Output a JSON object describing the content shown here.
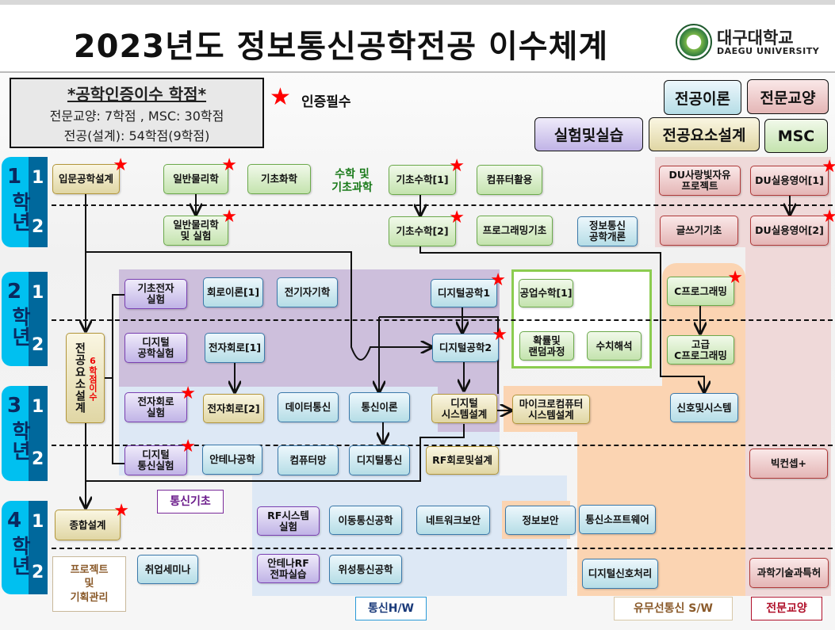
{
  "title": "2023년도 정보통신공학전공 이수체계",
  "logo": {
    "ko": "대구대학교",
    "en": "DAEGU UNIVERSITY"
  },
  "credits": {
    "heading": "*공학인증이수 학점*",
    "line1": "전문교양: 7학점 , MSC: 30학점",
    "line2": "전공(설계): 54학점(9학점)"
  },
  "required_legend": {
    "icon": "red-star",
    "label": "인증필수"
  },
  "legend": {
    "theory": "전공이론",
    "general": "전문교양",
    "lab": "실험및실습",
    "design": "전공요소설계",
    "msc": "MSC"
  },
  "colors": {
    "msc": "#c4e3ae",
    "theory": "#b5dde6",
    "lab": "#c0b3e6",
    "design": "#e0d6a4",
    "general": "#e4b5b5",
    "star": "#ff0000",
    "year_block": "#00c0f0",
    "semester_block": "#00689c"
  },
  "years": [
    {
      "num": "1",
      "unit": "학년",
      "sem1": "1",
      "sem2": "2"
    },
    {
      "num": "2",
      "unit": "학년",
      "sem1": "1",
      "sem2": "2"
    },
    {
      "num": "3",
      "unit": "학년",
      "sem1": "1",
      "sem2": "2"
    },
    {
      "num": "4",
      "unit": "학년",
      "sem1": "1",
      "sem2": "2"
    }
  ],
  "group_labels": {
    "math_science": "수학 및\n기초과학",
    "comm_basics": "통신기초",
    "project": "프로젝트\n및\n기획관리",
    "comm_hw": "통신H/W",
    "comm_sw": "유무선통신 S/W",
    "general": "전문교양",
    "design_note": "6학점이수"
  },
  "courses": [
    {
      "label": "입문공학설계",
      "type": "design",
      "required": true
    },
    {
      "label": "일반물리학",
      "type": "msc",
      "required": true
    },
    {
      "label": "기초화학",
      "type": "msc",
      "required": false
    },
    {
      "label": "기초수학[1]",
      "type": "msc",
      "required": true
    },
    {
      "label": "컴퓨터활용",
      "type": "msc",
      "required": false
    },
    {
      "label": "DU사랑빛자유\n프로젝트",
      "type": "general",
      "required": false
    },
    {
      "label": "DU실용영어[1]",
      "type": "general",
      "required": true
    },
    {
      "label": "일반물리학\n및 실험",
      "type": "msc",
      "required": true
    },
    {
      "label": "기초수학[2]",
      "type": "msc",
      "required": true
    },
    {
      "label": "프로그래밍기초",
      "type": "msc",
      "required": false
    },
    {
      "label": "정보통신\n공학개론",
      "type": "theory",
      "required": false
    },
    {
      "label": "글쓰기기초",
      "type": "general",
      "required": false
    },
    {
      "label": "DU실용영어[2]",
      "type": "general",
      "required": true
    },
    {
      "label": "기초전자\n실험",
      "type": "lab",
      "required": false
    },
    {
      "label": "회로이론[1]",
      "type": "theory",
      "required": false
    },
    {
      "label": "전기자기학",
      "type": "theory",
      "required": false
    },
    {
      "label": "디지털공학1",
      "type": "theory",
      "required": true
    },
    {
      "label": "공업수학[1]",
      "type": "msc",
      "required": false
    },
    {
      "label": "C프로그래밍",
      "type": "msc",
      "required": true
    },
    {
      "label": "디지털\n공학실험",
      "type": "lab",
      "required": false
    },
    {
      "label": "전자회로[1]",
      "type": "theory",
      "required": false
    },
    {
      "label": "디지털공학2",
      "type": "theory",
      "required": true
    },
    {
      "label": "확률및\n랜덤과정",
      "type": "msc",
      "required": false
    },
    {
      "label": "수치해석",
      "type": "msc",
      "required": false
    },
    {
      "label": "고급\nC프로그래밍",
      "type": "msc",
      "required": false
    },
    {
      "label": "전공요소설계",
      "type": "design",
      "required": false
    },
    {
      "label": "전자회로\n실험",
      "type": "lab",
      "required": true
    },
    {
      "label": "전자회로[2]",
      "type": "design",
      "required": false
    },
    {
      "label": "데이터통신",
      "type": "theory",
      "required": false
    },
    {
      "label": "통신이론",
      "type": "theory",
      "required": false
    },
    {
      "label": "디지털\n시스템설계",
      "type": "design",
      "required": false
    },
    {
      "label": "마이크로컴퓨터\n시스템설계",
      "type": "design",
      "required": false
    },
    {
      "label": "신호및시스템",
      "type": "theory",
      "required": false
    },
    {
      "label": "디지털\n통신실험",
      "type": "lab",
      "required": true
    },
    {
      "label": "안테나공학",
      "type": "theory",
      "required": false
    },
    {
      "label": "컴퓨터망",
      "type": "theory",
      "required": false
    },
    {
      "label": "디지털통신",
      "type": "theory",
      "required": false
    },
    {
      "label": "RF회로및설계",
      "type": "design",
      "required": false
    },
    {
      "label": "빅컨셉+",
      "type": "general",
      "required": false
    },
    {
      "label": "종합설계",
      "type": "design",
      "required": true
    },
    {
      "label": "RF시스템\n실험",
      "type": "lab",
      "required": false
    },
    {
      "label": "이동통신공학",
      "type": "theory",
      "required": false
    },
    {
      "label": "네트워크보안",
      "type": "theory",
      "required": false
    },
    {
      "label": "정보보안",
      "type": "theory",
      "required": false
    },
    {
      "label": "통신소프트웨어",
      "type": "theory",
      "required": false
    },
    {
      "label": "취업세미나",
      "type": "theory",
      "required": false
    },
    {
      "label": "안테나RF\n전파실습",
      "type": "lab",
      "required": false
    },
    {
      "label": "위성통신공학",
      "type": "theory",
      "required": false
    },
    {
      "label": "디지털신호처리",
      "type": "theory",
      "required": false
    },
    {
      "label": "과학기술과특허",
      "type": "general",
      "required": false
    }
  ]
}
